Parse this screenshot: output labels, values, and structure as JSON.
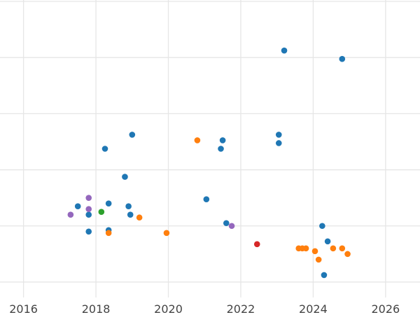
{
  "chart_data": {
    "type": "scatter",
    "title": "",
    "xlabel": "",
    "ylabel": "",
    "xlim": [
      2015.35,
      2026.95
    ],
    "ylim": [
      -0.3,
      10.3
    ],
    "xticks": [
      2016,
      2018,
      2020,
      2022,
      2024,
      2026
    ],
    "ygrid": [
      0.25,
      2.25,
      4.25,
      6.25,
      8.25,
      10.25
    ],
    "grid": true,
    "legend": "none",
    "series": [
      {
        "color": "#1f77b4",
        "points": [
          [
            2017.5,
            2.95
          ],
          [
            2017.8,
            2.65
          ],
          [
            2017.8,
            2.05
          ],
          [
            2018.25,
            5.0
          ],
          [
            2018.35,
            3.05
          ],
          [
            2018.35,
            2.1
          ],
          [
            2018.8,
            4.0
          ],
          [
            2018.9,
            2.95
          ],
          [
            2018.95,
            2.65
          ],
          [
            2019.0,
            5.5
          ],
          [
            2021.05,
            3.2
          ],
          [
            2021.45,
            5.0
          ],
          [
            2021.5,
            5.3
          ],
          [
            2021.6,
            2.35
          ],
          [
            2023.05,
            5.2
          ],
          [
            2023.05,
            5.5
          ],
          [
            2023.2,
            8.5
          ],
          [
            2024.25,
            2.25
          ],
          [
            2024.3,
            0.5
          ],
          [
            2024.4,
            1.7
          ],
          [
            2024.8,
            8.2
          ]
        ]
      },
      {
        "color": "#ff7f0e",
        "points": [
          [
            2018.35,
            2.0
          ],
          [
            2019.2,
            2.55
          ],
          [
            2019.95,
            2.0
          ],
          [
            2020.8,
            5.3
          ],
          [
            2023.6,
            1.45
          ],
          [
            2023.7,
            1.45
          ],
          [
            2023.8,
            1.45
          ],
          [
            2024.05,
            1.35
          ],
          [
            2024.15,
            1.05
          ],
          [
            2024.55,
            1.45
          ],
          [
            2024.8,
            1.45
          ],
          [
            2024.95,
            1.25
          ]
        ]
      },
      {
        "color": "#2ca02c",
        "points": [
          [
            2018.15,
            2.75
          ]
        ]
      },
      {
        "color": "#d62728",
        "points": [
          [
            2022.45,
            1.6
          ]
        ]
      },
      {
        "color": "#9467bd",
        "points": [
          [
            2017.3,
            2.65
          ],
          [
            2017.8,
            3.25
          ],
          [
            2017.8,
            2.85
          ],
          [
            2021.75,
            2.25
          ]
        ]
      }
    ]
  }
}
